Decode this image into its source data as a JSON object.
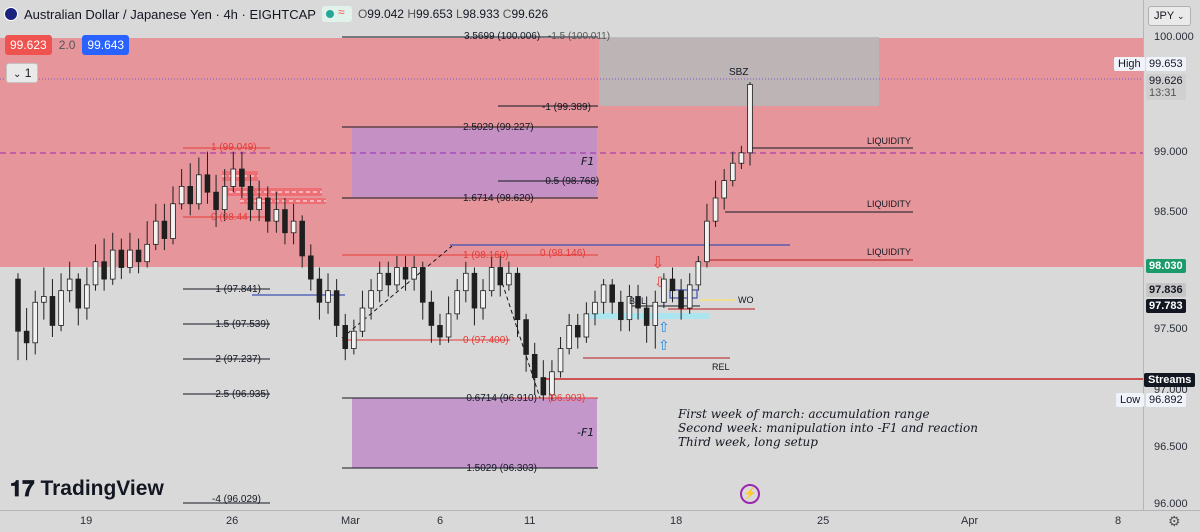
{
  "header": {
    "title": "Australian Dollar / Japanese Yen · 4h · EIGHTCAP",
    "flag_icon": "aud-jpy-flag-icon",
    "ohlc": {
      "o_label": "O",
      "o": "99.042",
      "h_label": "H",
      "h": "99.653",
      "l_label": "L",
      "l": "98.933",
      "c_label": "C",
      "c": "99.626"
    },
    "sell_price": "99.623",
    "spread": "2.0",
    "buy_price": "99.643",
    "collapse_label": "1",
    "currency": "JPY"
  },
  "branding": {
    "logo_text": "TradingView"
  },
  "notes": [
    "First week of march: accumulation range",
    "Second week: manipulation into -F1 and reaction",
    "Third week, long setup"
  ],
  "colors": {
    "premium_zone": "#e88a8f",
    "fvg_box": "#c18fc9",
    "sbz_box": "#b8b8b8",
    "candle_up": "#f2f2f2",
    "candle_down": "#1f1f1f",
    "red_line": "#e53935",
    "blue_line": "#3f51b5",
    "streams_line": "#c62828",
    "price_current": "#131722"
  },
  "chart_data": {
    "type": "candlestick",
    "symbol": "AUDJPY",
    "timeframe": "4h",
    "ylim": [
      96.0,
      100.1
    ],
    "y_ticks": [
      "100.000",
      "99.500",
      "99.000",
      "98.500",
      "98.000",
      "97.500",
      "97.000",
      "96.500",
      "96.000"
    ],
    "x_ticks": [
      "19",
      "26",
      "Mar",
      "6",
      "11",
      "18",
      "25",
      "Apr",
      "8"
    ],
    "price_labels": {
      "high_label": "High",
      "high": "99.653",
      "current": "99.626",
      "countdown": "13:31",
      "level_green": "98.030",
      "level_gray": "97.836",
      "level_dark": "97.783",
      "streams_label": "Streams",
      "low_label": "Low",
      "low": "96.892"
    },
    "fib_labels": {
      "a": "3.5699 (100.006)",
      "b": "-1.5 (100.011)",
      "c": "-1 (99.389)",
      "d": "2.5029 (99.227)",
      "e": "-0.5 (98.768)",
      "f": "1.6714 (98.620)",
      "g": "1 (98.160)",
      "h": "0 (98.146)",
      "i": "1 (99.049)",
      "j": "0 (98.44",
      "k": "-1 (97.841)",
      "l": "-1.5 (97.539)",
      "m": "-2 (97.237)",
      "n": "-2.5 (96.935)",
      "o": "0 (97.400)",
      "p": "-0.6714 (96.910)",
      "q": "(96.903)",
      "r": "-1.5029 (96.303)",
      "s": "-4 (96.029)"
    },
    "annotations": {
      "f1": "F1",
      "neg_f1": "-F1",
      "sbz": "SBZ",
      "liquidity_1": "LIQUIDITY",
      "liquidity_2": "LIQUIDITY",
      "liquidity_3": "LIQUIDITY",
      "bsl": "BSL",
      "wo": "WO",
      "rel": "REL"
    },
    "candles": [
      [
        97.95,
        97.5,
        98.0,
        97.25
      ],
      [
        97.5,
        97.4,
        97.7,
        97.25
      ],
      [
        97.4,
        97.75,
        97.85,
        97.3
      ],
      [
        97.75,
        97.8,
        98.05,
        97.6
      ],
      [
        97.8,
        97.55,
        97.95,
        97.45
      ],
      [
        97.55,
        97.85,
        98.0,
        97.5
      ],
      [
        97.85,
        97.95,
        98.1,
        97.75
      ],
      [
        97.95,
        97.7,
        98.0,
        97.55
      ],
      [
        97.7,
        97.9,
        98.05,
        97.6
      ],
      [
        97.9,
        98.1,
        98.25,
        97.85
      ],
      [
        98.1,
        97.95,
        98.3,
        97.85
      ],
      [
        97.95,
        98.2,
        98.35,
        97.9
      ],
      [
        98.2,
        98.05,
        98.3,
        97.95
      ],
      [
        98.05,
        98.2,
        98.35,
        98.0
      ],
      [
        98.2,
        98.1,
        98.3,
        98.0
      ],
      [
        98.1,
        98.25,
        98.45,
        98.05
      ],
      [
        98.25,
        98.45,
        98.6,
        98.2
      ],
      [
        98.45,
        98.3,
        98.6,
        98.2
      ],
      [
        98.3,
        98.6,
        98.75,
        98.25
      ],
      [
        98.6,
        98.75,
        98.9,
        98.55
      ],
      [
        98.75,
        98.6,
        98.95,
        98.5
      ],
      [
        98.6,
        98.85,
        99.0,
        98.55
      ],
      [
        98.85,
        98.7,
        99.05,
        98.6
      ],
      [
        98.7,
        98.55,
        98.85,
        98.4
      ],
      [
        98.55,
        98.75,
        98.9,
        98.45
      ],
      [
        98.75,
        98.9,
        99.05,
        98.7
      ],
      [
        98.9,
        98.75,
        99.05,
        98.65
      ],
      [
        98.75,
        98.55,
        98.85,
        98.45
      ],
      [
        98.55,
        98.65,
        98.8,
        98.45
      ],
      [
        98.65,
        98.45,
        98.75,
        98.35
      ],
      [
        98.45,
        98.55,
        98.7,
        98.35
      ],
      [
        98.55,
        98.35,
        98.65,
        98.25
      ],
      [
        98.35,
        98.45,
        98.6,
        98.25
      ],
      [
        98.45,
        98.15,
        98.5,
        98.05
      ],
      [
        98.15,
        97.95,
        98.25,
        97.85
      ],
      [
        97.95,
        97.75,
        98.05,
        97.6
      ],
      [
        97.75,
        97.85,
        98.0,
        97.65
      ],
      [
        97.85,
        97.55,
        97.95,
        97.45
      ],
      [
        97.55,
        97.35,
        97.65,
        97.25
      ],
      [
        97.35,
        97.5,
        97.6,
        97.3
      ],
      [
        97.5,
        97.7,
        97.85,
        97.45
      ],
      [
        97.7,
        97.85,
        97.95,
        97.6
      ],
      [
        97.85,
        98.0,
        98.1,
        97.75
      ],
      [
        98.0,
        97.9,
        98.1,
        97.8
      ],
      [
        97.9,
        98.05,
        98.15,
        97.85
      ],
      [
        98.05,
        97.95,
        98.15,
        97.85
      ],
      [
        97.95,
        98.05,
        98.15,
        97.85
      ],
      [
        98.05,
        97.75,
        98.1,
        97.6
      ],
      [
        97.75,
        97.55,
        97.85,
        97.4
      ],
      [
        97.55,
        97.45,
        97.65,
        97.38
      ],
      [
        97.45,
        97.65,
        97.8,
        97.4
      ],
      [
        97.65,
        97.85,
        97.95,
        97.6
      ],
      [
        97.85,
        98.0,
        98.1,
        97.75
      ],
      [
        98.0,
        97.7,
        98.05,
        97.55
      ],
      [
        97.7,
        97.85,
        97.95,
        97.6
      ],
      [
        97.85,
        98.05,
        98.15,
        97.8
      ],
      [
        98.05,
        97.9,
        98.15,
        97.8
      ],
      [
        97.9,
        98.0,
        98.1,
        97.85
      ],
      [
        98.0,
        97.6,
        98.05,
        97.45
      ],
      [
        97.6,
        97.3,
        97.65,
        97.15
      ],
      [
        97.3,
        97.1,
        97.4,
        96.95
      ],
      [
        97.1,
        96.95,
        97.25,
        96.9
      ],
      [
        96.95,
        97.15,
        97.25,
        96.9
      ],
      [
        97.15,
        97.35,
        97.45,
        97.1
      ],
      [
        97.35,
        97.55,
        97.65,
        97.3
      ],
      [
        97.55,
        97.45,
        97.65,
        97.35
      ],
      [
        97.45,
        97.65,
        97.75,
        97.4
      ],
      [
        97.65,
        97.75,
        97.85,
        97.55
      ],
      [
        97.75,
        97.9,
        97.95,
        97.65
      ],
      [
        97.9,
        97.75,
        97.95,
        97.65
      ],
      [
        97.75,
        97.6,
        97.85,
        97.5
      ],
      [
        97.6,
        97.8,
        97.9,
        97.5
      ],
      [
        97.8,
        97.7,
        97.9,
        97.6
      ],
      [
        97.7,
        97.55,
        97.8,
        97.4
      ],
      [
        97.55,
        97.75,
        97.85,
        97.35
      ],
      [
        97.75,
        97.95,
        98.0,
        97.7
      ],
      [
        97.95,
        97.85,
        98.05,
        97.75
      ],
      [
        97.85,
        97.7,
        97.95,
        97.6
      ],
      [
        97.7,
        97.9,
        98.0,
        97.65
      ],
      [
        97.9,
        98.1,
        98.15,
        97.85
      ],
      [
        98.1,
        98.45,
        98.6,
        98.05
      ],
      [
        98.45,
        98.65,
        98.8,
        98.4
      ],
      [
        98.65,
        98.8,
        98.9,
        98.55
      ],
      [
        98.8,
        98.95,
        99.05,
        98.75
      ],
      [
        98.95,
        99.04,
        99.1,
        98.9
      ],
      [
        99.04,
        99.63,
        99.65,
        98.93
      ]
    ]
  }
}
